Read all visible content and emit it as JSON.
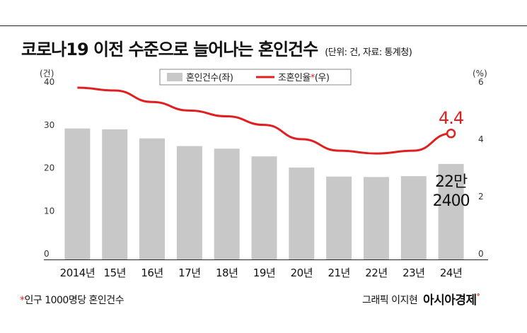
{
  "header": {
    "title": "코로나19 이전 수준으로 늘어나는 혼인건수",
    "unit_note": "(단위: 건, 자료: 통계청)"
  },
  "chart_data": {
    "type": "bar",
    "categories": [
      "2014년",
      "15년",
      "16년",
      "17년",
      "18년",
      "19년",
      "20년",
      "21년",
      "22년",
      "23년",
      "24년"
    ],
    "series": [
      {
        "name": "혼인건수(좌)",
        "kind": "bar",
        "axis": "left",
        "color": "#c8c8c8",
        "values": [
          30.5,
          30.3,
          28.2,
          26.4,
          25.8,
          24.0,
          21.4,
          19.3,
          19.2,
          19.4,
          22.24
        ]
      },
      {
        "name": "조혼인율*(우)",
        "kind": "line",
        "axis": "right",
        "color": "#e02020",
        "values": [
          6.0,
          5.9,
          5.5,
          5.2,
          5.0,
          4.7,
          4.2,
          3.8,
          3.7,
          3.8,
          4.4
        ]
      }
    ],
    "left_axis": {
      "label": "(건)",
      "ticks": [
        "0",
        "10",
        "20",
        "30",
        "40"
      ],
      "range": [
        0,
        40
      ]
    },
    "right_axis": {
      "label": "(%)",
      "ticks": [
        "0",
        "2",
        "4",
        "6"
      ],
      "range": [
        0,
        6
      ]
    },
    "legend": {
      "position": "top-center",
      "items": [
        {
          "text": "혼인건수(좌)"
        },
        {
          "text_before": "조혼인율",
          "star": "*",
          "text_after": "(우)"
        }
      ]
    },
    "annotations": {
      "line_end_value": "4.4",
      "bar_end_value_line1": "22만",
      "bar_end_value_line2": "2400"
    },
    "grid": false
  },
  "footer": {
    "note_star": "*",
    "note": "인구 1000명당 혼인건수",
    "credit": "그래픽 이지현",
    "brand": "아시아경제",
    "brand_mark": "ᐤ"
  }
}
